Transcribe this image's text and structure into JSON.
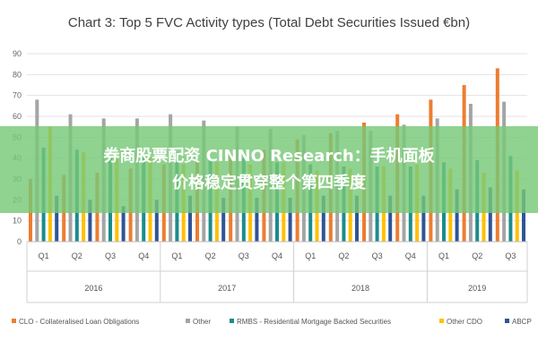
{
  "banner": {
    "line1": "券商股票配资 CINNO Research：手机面板",
    "line2": "价格稳定贯穿整个第四季度"
  },
  "chart_data": {
    "type": "bar",
    "title": "Chart 3: Top 5 FVC Activity types (Total Debt Securities Issued €bn)",
    "xlabel": "",
    "ylabel": "",
    "ylim": [
      0,
      90
    ],
    "yticks": [
      0,
      10,
      20,
      30,
      40,
      50,
      60,
      70,
      80,
      90
    ],
    "grid": true,
    "legend_position": "bottom",
    "categories": [
      "Q1",
      "Q2",
      "Q3",
      "Q4",
      "Q1",
      "Q2",
      "Q3",
      "Q4",
      "Q1",
      "Q2",
      "Q3",
      "Q4",
      "Q1",
      "Q2",
      "Q3"
    ],
    "groups": [
      {
        "label": "2016",
        "count": 4
      },
      {
        "label": "2017",
        "count": 4
      },
      {
        "label": "2018",
        "count": 4
      },
      {
        "label": "2019",
        "count": 3
      }
    ],
    "series": [
      {
        "name": "CLO - Collateralised Loan Obligations",
        "color": "#ed7d31",
        "values": [
          30,
          32,
          33,
          35,
          37,
          39,
          42,
          44,
          49,
          52,
          57,
          61,
          68,
          75,
          83
        ]
      },
      {
        "name": "Other",
        "color": "#a5a5a5",
        "values": [
          68,
          61,
          59,
          59,
          61,
          58,
          55,
          54,
          51,
          53,
          53,
          56,
          59,
          66,
          67
        ]
      },
      {
        "name": "RMBS - Residential Mortgage Backed Securities",
        "color": "#1b8c8c",
        "values": [
          45,
          44,
          40,
          42,
          43,
          40,
          40,
          38,
          37,
          36,
          36,
          36,
          38,
          39,
          41
        ]
      },
      {
        "name": "Other CDO",
        "color": "#ffc000",
        "values": [
          55,
          43,
          40,
          40,
          37,
          38,
          37,
          38,
          34,
          35,
          36,
          37,
          35,
          33,
          34
        ]
      },
      {
        "name": "ABCP",
        "color": "#2f5597",
        "values": [
          22,
          20,
          17,
          20,
          22,
          21,
          21,
          21,
          22,
          22,
          22,
          22,
          25,
          26,
          25
        ]
      }
    ]
  }
}
